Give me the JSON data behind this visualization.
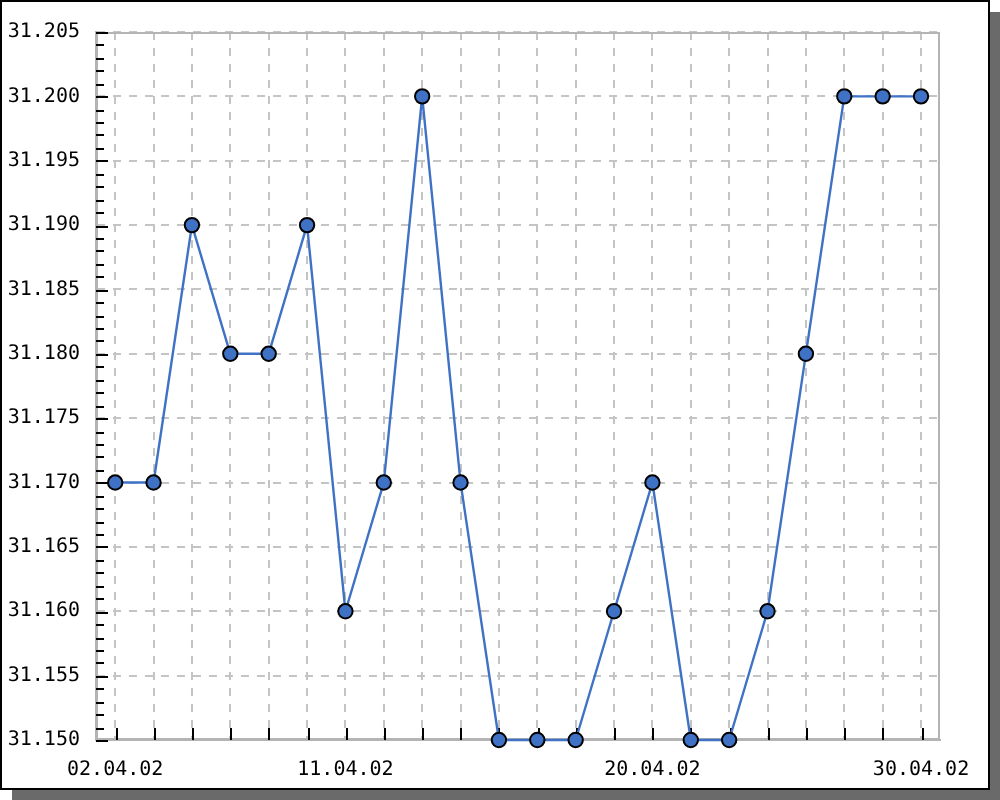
{
  "chart_data": {
    "type": "line",
    "categories": [
      "02.04.02",
      null,
      null,
      null,
      null,
      null,
      "11.04.02",
      null,
      null,
      null,
      null,
      null,
      null,
      null,
      "20.04.02",
      null,
      null,
      null,
      null,
      null,
      null,
      "30.04.02"
    ],
    "series": [
      {
        "color": "#3f72c4",
        "values": [
          31.17,
          31.17,
          31.19,
          31.18,
          31.18,
          31.19,
          31.16,
          31.17,
          31.2,
          31.17,
          31.15,
          31.15,
          31.15,
          31.16,
          31.17,
          31.15,
          31.15,
          31.16,
          31.18,
          31.2,
          31.2,
          31.2
        ]
      }
    ],
    "ylim": [
      31.15,
      31.205
    ],
    "yticks": [
      {
        "value": 31.15,
        "label": "31.150"
      },
      {
        "value": 31.151,
        "label": null
      },
      {
        "value": 31.152,
        "label": null
      },
      {
        "value": 31.153,
        "label": null
      },
      {
        "value": 31.154,
        "label": null
      },
      31.155,
      {
        "value": 31.156,
        "label": null
      },
      {
        "value": 31.157,
        "label": null
      },
      {
        "value": 31.158,
        "label": null
      },
      {
        "value": 31.159,
        "label": null
      },
      {
        "value": 31.16,
        "label": "31.160"
      },
      {
        "value": 31.161,
        "label": null
      },
      {
        "value": 31.162,
        "label": null
      },
      {
        "value": 31.163,
        "label": null
      },
      {
        "value": 31.164,
        "label": null
      },
      31.165,
      {
        "value": 31.166,
        "label": null
      },
      {
        "value": 31.167,
        "label": null
      },
      {
        "value": 31.168,
        "label": null
      },
      {
        "value": 31.169,
        "label": null
      },
      {
        "value": 31.17,
        "label": "31.170"
      },
      {
        "value": 31.171,
        "label": null
      },
      {
        "value": 31.172,
        "label": null
      },
      {
        "value": 31.173,
        "label": null
      },
      {
        "value": 31.174,
        "label": null
      },
      31.175,
      {
        "value": 31.176,
        "label": null
      },
      {
        "value": 31.177,
        "label": null
      },
      {
        "value": 31.178,
        "label": null
      },
      {
        "value": 31.179,
        "label": null
      },
      {
        "value": 31.18,
        "label": "31.180"
      },
      {
        "value": 31.181,
        "label": null
      },
      {
        "value": 31.182,
        "label": null
      },
      {
        "value": 31.183,
        "label": null
      },
      {
        "value": 31.184,
        "label": null
      },
      31.185,
      {
        "value": 31.186,
        "label": null
      },
      {
        "value": 31.187,
        "label": null
      },
      {
        "value": 31.188,
        "label": null
      },
      {
        "value": 31.189,
        "label": null
      },
      {
        "value": 31.19,
        "label": "31.190"
      },
      {
        "value": 31.191,
        "label": null
      },
      {
        "value": 31.192,
        "label": null
      },
      {
        "value": 31.193,
        "label": null
      },
      {
        "value": 31.194,
        "label": null
      },
      31.195,
      {
        "value": 31.196,
        "label": null
      },
      {
        "value": 31.197,
        "label": null
      },
      {
        "value": 31.198,
        "label": null
      },
      {
        "value": 31.199,
        "label": null
      },
      {
        "value": 31.2,
        "label": "31.200"
      },
      {
        "value": 31.201,
        "label": null
      },
      {
        "value": 31.202,
        "label": null
      },
      {
        "value": 31.203,
        "label": null
      },
      {
        "value": 31.204,
        "label": null
      },
      31.205
    ],
    "grid": true,
    "marker": "circle",
    "line_style": "solid"
  }
}
